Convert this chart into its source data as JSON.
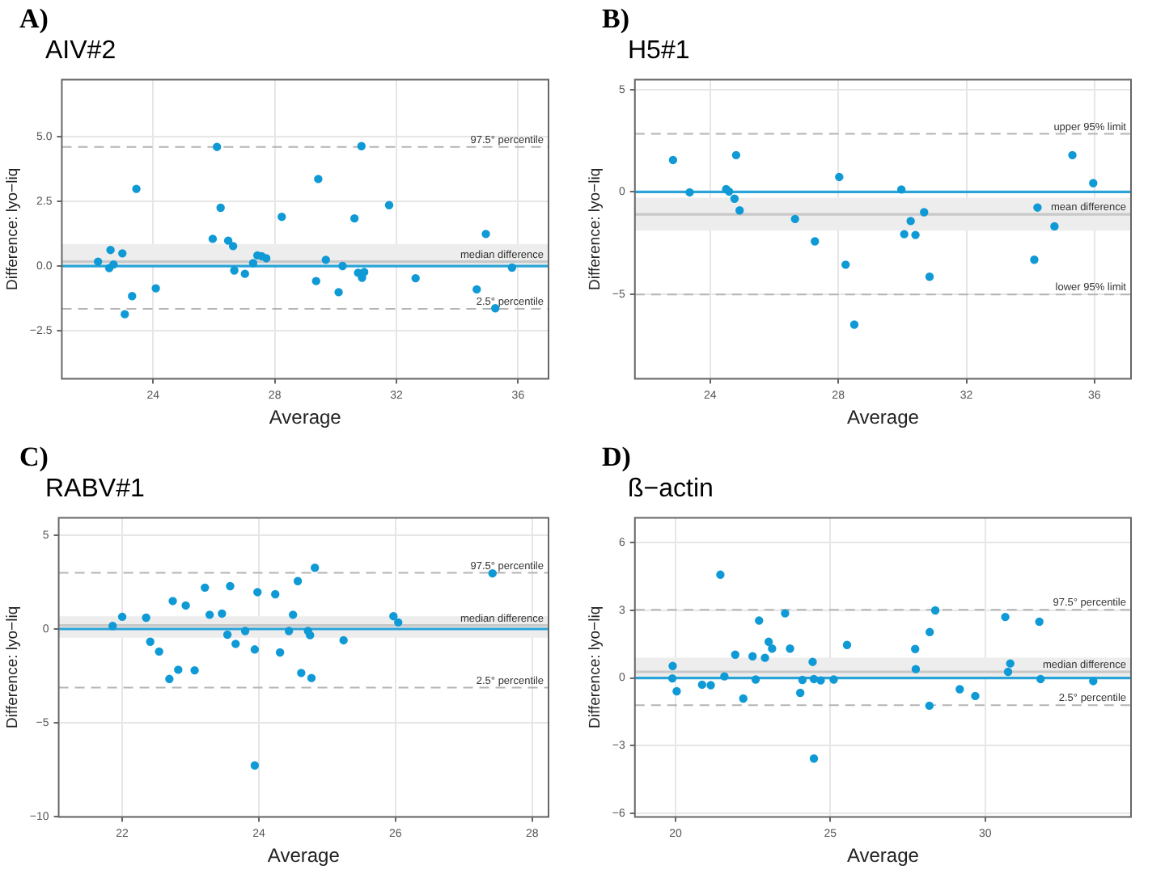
{
  "chart_data": [
    {
      "type": "scatter",
      "annotations": [
        "A)"
      ],
      "title": "AIV#2",
      "xlabel": "Average",
      "ylabel": "Difference: lyo−liq",
      "xlim": [
        21,
        37
      ],
      "xticks": [
        24,
        28,
        32,
        36
      ],
      "ylim": [
        -4.35,
        7.2
      ],
      "yticks": [
        {
          "value": 5,
          "label": "5.0"
        },
        {
          "value": 2.5,
          "label": "2.5"
        },
        {
          "value": 0,
          "label": "0.0"
        },
        {
          "value": -2.5,
          "label": "−2.5"
        }
      ],
      "grid": true,
      "legend": false,
      "marker": "circle",
      "series": [
        {
          "color": "#0f9ad6",
          "x": [
            22.19,
            22.6,
            22.56,
            22.7,
            22.99,
            23.45,
            23.31,
            23.07,
            24.09,
            25.96,
            26.1,
            26.22,
            26.47,
            26.63,
            26.67,
            27.02,
            27.29,
            27.43,
            27.57,
            27.72,
            28.23,
            29.43,
            29.36,
            29.68,
            30.1,
            30.23,
            30.62,
            30.74,
            30.85,
            30.87,
            30.94,
            31.76,
            32.63,
            34.64,
            34.94,
            35.25,
            35.8
          ],
          "values": [
            0.17,
            0.62,
            -0.08,
            0.06,
            0.49,
            2.98,
            -1.16,
            -1.86,
            -0.86,
            1.05,
            4.6,
            2.25,
            0.98,
            0.77,
            -0.17,
            -0.3,
            0.11,
            0.41,
            0.38,
            0.3,
            1.9,
            3.36,
            -0.58,
            0.24,
            -1.01,
            0,
            1.84,
            -0.26,
            4.63,
            -0.45,
            -0.23,
            2.35,
            -0.47,
            -0.9,
            1.24,
            -1.63,
            -0.06
          ]
        }
      ],
      "bands": [
        {
          "axis": "y",
          "from": 0,
          "to": 0.85,
          "color": "#ededed"
        }
      ],
      "ref_lines": [
        {
          "axis": "y",
          "value": 4.6,
          "label": "97.5° percentile",
          "color": "#b4b4b4",
          "line_style": "dashed"
        },
        {
          "axis": "y",
          "value": 0.17,
          "label": "median difference",
          "color": "#c8c8c8",
          "line_style": "solid"
        },
        {
          "axis": "y",
          "value": -1.65,
          "label": "2.5° percentile",
          "color": "#b4b4b4",
          "line_style": "dashed"
        },
        {
          "axis": "y",
          "value": 0,
          "color": "#2aa3d8",
          "line_style": "solid"
        }
      ]
    },
    {
      "type": "scatter",
      "annotations": [
        "B)"
      ],
      "title": "H5#1",
      "xlabel": "Average",
      "ylabel": "Difference: lyo−liq",
      "xlim": [
        21.65,
        37.14
      ],
      "xticks": [
        24,
        28,
        32,
        36
      ],
      "ylim": [
        -9.12,
        5.49
      ],
      "yticks": [
        5,
        0,
        {
          "value": -5,
          "label": "−5"
        }
      ],
      "grid": true,
      "legend": false,
      "marker": "circle",
      "series": [
        {
          "color": "#0f9ad6",
          "x": [
            22.84,
            23.36,
            24.5,
            24.59,
            24.76,
            24.81,
            24.92,
            26.65,
            27.27,
            28.03,
            28.23,
            28.5,
            29.97,
            30.06,
            30.26,
            30.41,
            30.68,
            30.85,
            34.12,
            34.22,
            34.75,
            35.31,
            35.96
          ],
          "values": [
            1.56,
            -0.02,
            0.14,
            0.02,
            -0.33,
            1.8,
            -0.9,
            -1.32,
            -2.41,
            0.73,
            -3.55,
            -6.48,
            0.12,
            -2.06,
            -1.42,
            -2.1,
            -0.99,
            -4.14,
            -3.31,
            -0.76,
            -1.68,
            1.8,
            0.43
          ]
        }
      ],
      "bands": [
        {
          "axis": "y",
          "from": -1.89,
          "to": -0.28,
          "color": "#ededed"
        }
      ],
      "ref_lines": [
        {
          "axis": "y",
          "value": 2.84,
          "label": "upper 95% limit",
          "color": "#b4b4b4",
          "line_style": "dashed"
        },
        {
          "axis": "y",
          "value": -1.09,
          "label": "mean difference",
          "color": "#c8c8c8",
          "line_style": "solid"
        },
        {
          "axis": "y",
          "value": -5.01,
          "label": "lower 95% limit",
          "color": "#b4b4b4",
          "line_style": "dashed"
        },
        {
          "axis": "y",
          "value": 0,
          "color": "#2aa3d8",
          "line_style": "solid"
        }
      ]
    },
    {
      "type": "scatter",
      "annotations": [
        "C)"
      ],
      "title": "RABV#1",
      "xlabel": "Average",
      "ylabel": "Difference: lyo−liq",
      "xlim": [
        21.07,
        28.24
      ],
      "xticks": [
        22,
        24,
        26,
        28
      ],
      "ylim": [
        -10,
        5.92
      ],
      "yticks": [
        5,
        0,
        {
          "value": -5,
          "label": "−5"
        },
        {
          "value": -10,
          "label": "−10"
        }
      ],
      "grid": true,
      "legend": false,
      "marker": "circle",
      "series": [
        {
          "color": "#0f9ad6",
          "x": [
            21.86,
            22.0,
            22.35,
            22.41,
            22.54,
            22.69,
            22.74,
            22.82,
            22.93,
            23.06,
            23.21,
            23.28,
            23.46,
            23.54,
            23.58,
            23.66,
            23.8,
            23.94,
            23.94,
            23.98,
            24.24,
            24.31,
            24.44,
            24.5,
            24.57,
            24.62,
            24.72,
            24.75,
            24.77,
            24.82,
            25.24,
            25.97,
            26.04,
            27.42
          ],
          "values": [
            0.16,
            0.65,
            0.6,
            -0.68,
            -1.2,
            -2.66,
            1.49,
            -2.17,
            1.25,
            -2.2,
            2.2,
            0.76,
            0.82,
            -0.3,
            2.28,
            -0.79,
            -0.11,
            -1.09,
            -7.26,
            1.96,
            1.85,
            -1.25,
            -0.11,
            0.76,
            2.55,
            -2.34,
            -0.11,
            -0.33,
            -2.61,
            3.26,
            -0.6,
            0.68,
            0.35,
            2.96
          ]
        }
      ],
      "bands": [
        {
          "axis": "y",
          "from": -0.46,
          "to": 0.68,
          "color": "#ededed"
        }
      ],
      "ref_lines": [
        {
          "axis": "y",
          "value": 2.99,
          "label": "97.5° percentile",
          "color": "#b4b4b4",
          "line_style": "dashed"
        },
        {
          "axis": "y",
          "value": 0.19,
          "label": "median difference",
          "color": "#c8c8c8",
          "line_style": "solid"
        },
        {
          "axis": "y",
          "value": -3.12,
          "label": "2.5° percentile",
          "color": "#b4b4b4",
          "line_style": "dashed"
        },
        {
          "axis": "y",
          "value": 0,
          "color": "#2aa3d8",
          "line_style": "solid"
        }
      ]
    },
    {
      "type": "scatter",
      "annotations": [
        "D)"
      ],
      "title": "ß−actin",
      "xlabel": "Average",
      "ylabel": "Difference: lyo−liq",
      "xlim": [
        18.69,
        34.71
      ],
      "xticks": [
        20,
        25,
        30
      ],
      "ylim": [
        -6.15,
        7.09
      ],
      "yticks": [
        6,
        3,
        0,
        {
          "value": -3,
          "label": "−3"
        },
        {
          "value": -6,
          "label": "−6"
        }
      ],
      "grid": true,
      "legend": false,
      "marker": "circle",
      "series": [
        {
          "color": "#0f9ad6",
          "x": [
            19.91,
            19.9,
            20.04,
            20.86,
            21.14,
            21.45,
            21.58,
            21.93,
            22.19,
            22.49,
            22.59,
            22.7,
            22.89,
            23.01,
            23.12,
            23.54,
            23.7,
            24.03,
            24.1,
            24.43,
            24.47,
            24.47,
            24.69,
            25.11,
            25.54,
            27.74,
            27.76,
            28.21,
            28.2,
            28.39,
            29.18,
            29.68,
            30.65,
            30.74,
            30.81,
            31.75,
            31.79,
            33.49
          ],
          "values": [
            0.53,
            -0.02,
            -0.59,
            -0.3,
            -0.32,
            4.57,
            0.07,
            1.03,
            -0.91,
            0.96,
            -0.07,
            2.54,
            0.89,
            1.6,
            1.3,
            2.86,
            1.3,
            -0.66,
            -0.09,
            0.71,
            -0.05,
            -3.57,
            -0.11,
            -0.07,
            1.46,
            1.28,
            0.39,
            2.03,
            -1.23,
            2.99,
            -0.5,
            -0.8,
            2.7,
            0.27,
            0.64,
            2.49,
            -0.05,
            -0.14
          ]
        }
      ],
      "bands": [
        {
          "axis": "y",
          "from": -0.02,
          "to": 0.9,
          "color": "#ededed"
        }
      ],
      "ref_lines": [
        {
          "axis": "y",
          "value": 3.02,
          "label": "97.5° percentile",
          "color": "#b4b4b4",
          "line_style": "dashed"
        },
        {
          "axis": "y",
          "value": 0.27,
          "label": "median difference",
          "color": "#c8c8c8",
          "line_style": "solid"
        },
        {
          "axis": "y",
          "value": -1.21,
          "label": "2.5° percentile",
          "color": "#b4b4b4",
          "line_style": "dashed"
        },
        {
          "axis": "y",
          "value": 0,
          "color": "#2aa3d8",
          "line_style": "solid"
        }
      ]
    }
  ]
}
